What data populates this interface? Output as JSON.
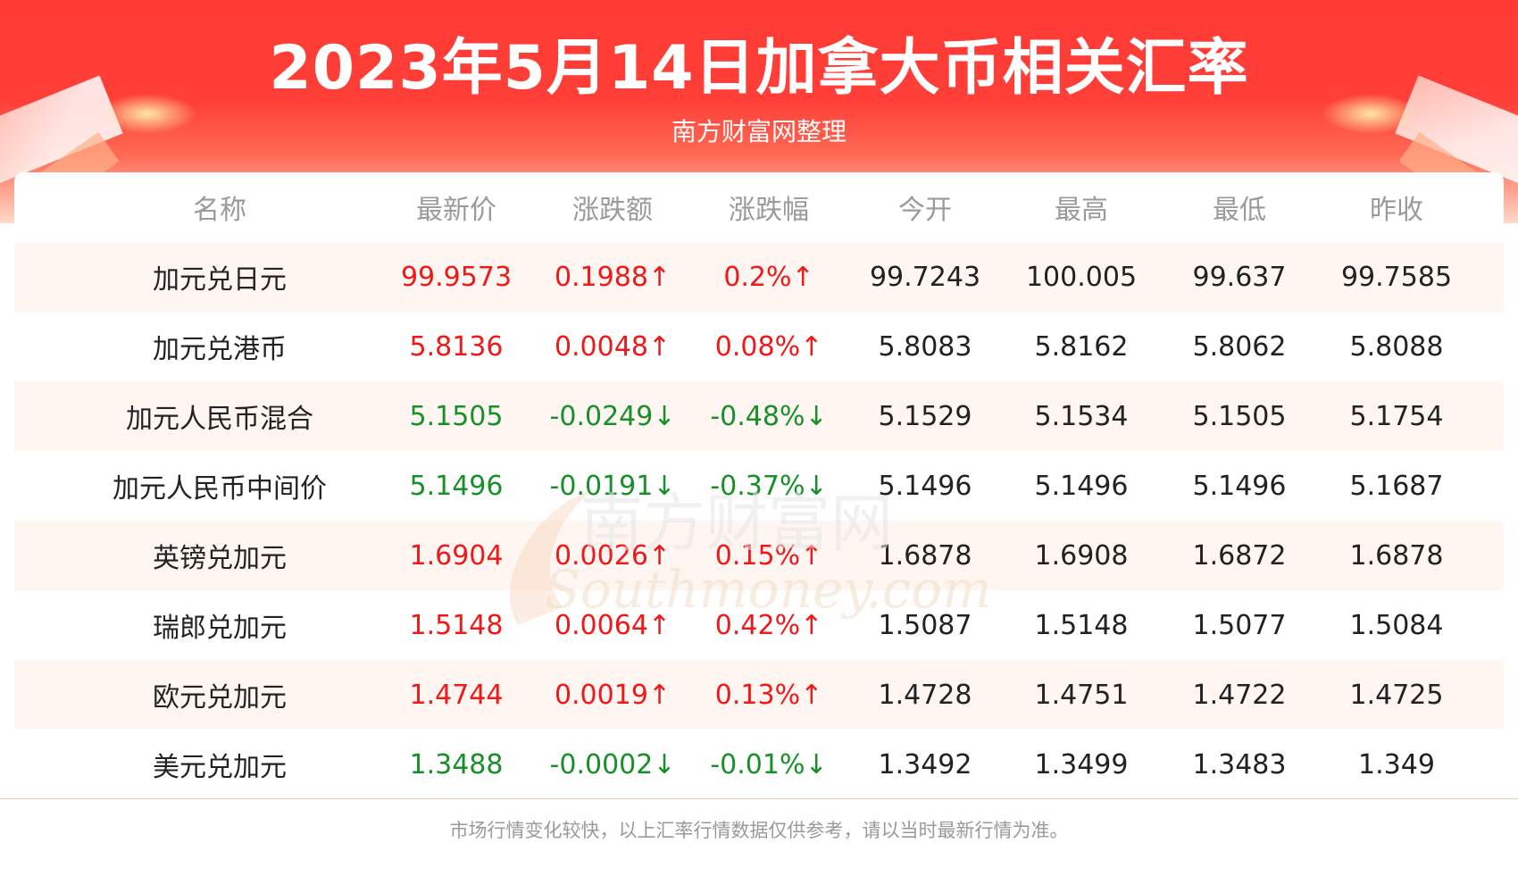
{
  "header": {
    "title": "2023年5月14日加拿大币相关汇率",
    "subtitle": "南方财富网整理"
  },
  "table": {
    "columns": [
      "名称",
      "最新价",
      "涨跌额",
      "涨跌幅",
      "今开",
      "最高",
      "最低",
      "昨收"
    ],
    "rows": [
      {
        "name": "加元兑日元",
        "latest": "99.9573",
        "change": "0.1988↑",
        "pct": "0.2%↑",
        "open": "99.7243",
        "high": "100.005",
        "low": "99.637",
        "prev": "99.7585",
        "trend": "up"
      },
      {
        "name": "加元兑港币",
        "latest": "5.8136",
        "change": "0.0048↑",
        "pct": "0.08%↑",
        "open": "5.8083",
        "high": "5.8162",
        "low": "5.8062",
        "prev": "5.8088",
        "trend": "up"
      },
      {
        "name": "加元人民币混合",
        "latest": "5.1505",
        "change": "-0.0249↓",
        "pct": "-0.48%↓",
        "open": "5.1529",
        "high": "5.1534",
        "low": "5.1505",
        "prev": "5.1754",
        "trend": "down"
      },
      {
        "name": "加元人民币中间价",
        "latest": "5.1496",
        "change": "-0.0191↓",
        "pct": "-0.37%↓",
        "open": "5.1496",
        "high": "5.1496",
        "low": "5.1496",
        "prev": "5.1687",
        "trend": "down"
      },
      {
        "name": "英镑兑加元",
        "latest": "1.6904",
        "change": "0.0026↑",
        "pct": "0.15%↑",
        "open": "1.6878",
        "high": "1.6908",
        "low": "1.6872",
        "prev": "1.6878",
        "trend": "up"
      },
      {
        "name": "瑞郎兑加元",
        "latest": "1.5148",
        "change": "0.0064↑",
        "pct": "0.42%↑",
        "open": "1.5087",
        "high": "1.5148",
        "low": "1.5077",
        "prev": "1.5084",
        "trend": "up"
      },
      {
        "name": "欧元兑加元",
        "latest": "1.4744",
        "change": "0.0019↑",
        "pct": "0.13%↑",
        "open": "1.4728",
        "high": "1.4751",
        "low": "1.4722",
        "prev": "1.4725",
        "trend": "up"
      },
      {
        "name": "美元兑加元",
        "latest": "1.3488",
        "change": "-0.0002↓",
        "pct": "-0.01%↓",
        "open": "1.3492",
        "high": "1.3499",
        "low": "1.3483",
        "prev": "1.349",
        "trend": "down"
      }
    ]
  },
  "watermark": {
    "text_cn": "南方财富网",
    "text_en": "Southmoney.com"
  },
  "footer": {
    "disclaimer": "市场行情变化较快，以上汇率行情数据仅供参考，请以当时最新行情为准。"
  },
  "colors": {
    "up": "#f01818",
    "down": "#18902a",
    "header_red": "#ff3a35",
    "row_alt": "#fff6f2"
  }
}
